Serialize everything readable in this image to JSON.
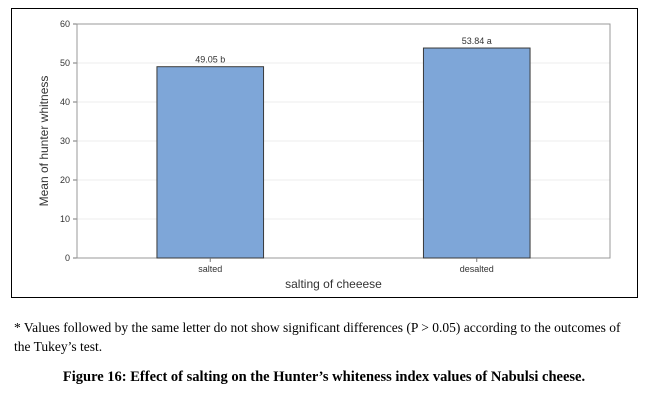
{
  "chart_data": {
    "type": "bar",
    "categories": [
      "salted",
      "desalted"
    ],
    "values": [
      49.05,
      53.84
    ],
    "data_labels": [
      "49.05 b",
      "53.84 a"
    ],
    "xlabel": "salting of cheeese",
    "ylabel": "Mean of hunter whitness",
    "ylim": [
      0,
      60
    ],
    "yticks": [
      0,
      10,
      20,
      30,
      40,
      50,
      60
    ],
    "grid": true,
    "bar_color": "#7ea6d8",
    "bar_edge_color": "#3a3a3a"
  },
  "footnote": "* Values followed by the same letter do not show significant differences (P > 0.05) according to the outcomes of the Tukey’s test.",
  "caption": "Figure 16: Effect of salting on the Hunter’s whiteness index values of Nabulsi cheese."
}
